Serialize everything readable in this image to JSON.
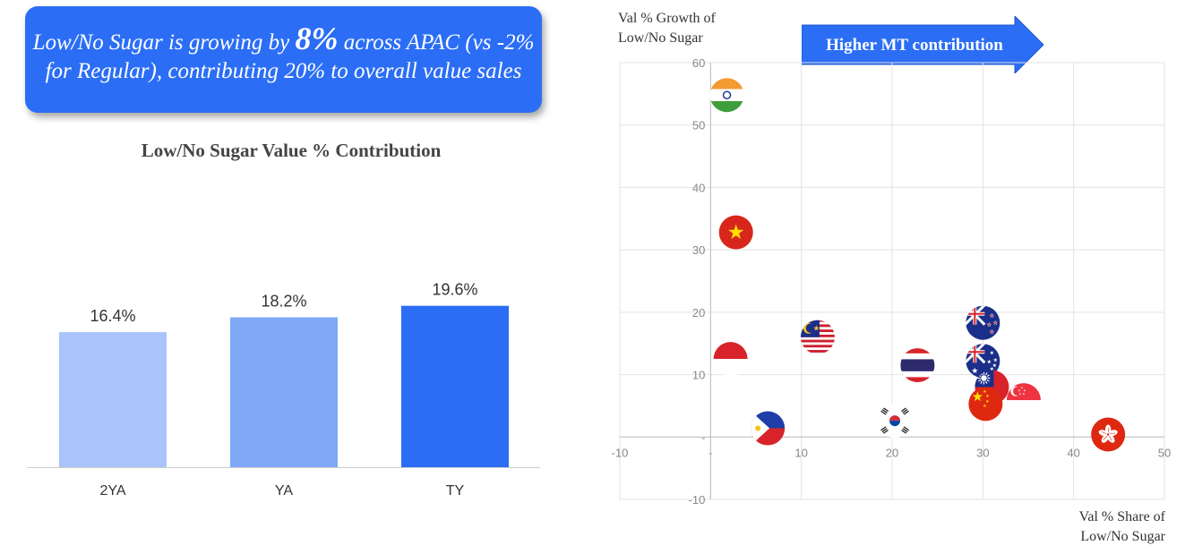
{
  "callout": {
    "pre": "Low/No Sugar is growing by ",
    "highlight": "8%",
    "post": " across APAC (vs -2% for Regular), contributing 20% to overall value sales"
  },
  "bar_title": "Low/No Sugar Value % Contribution",
  "scatter": {
    "ylabel_line1": "Val % Growth of",
    "ylabel_line2": "Low/No Sugar",
    "xlabel_line1": "Val % Share of",
    "xlabel_line2": "Low/No Sugar",
    "arrow_label": "Higher MT contribution"
  },
  "colors": {
    "accent": "#2b6ef5",
    "bar_2ya": "#a9c4fa",
    "bar_ya": "#7fa8f7",
    "bar_ty": "#2b6ef5"
  },
  "chart_data": [
    {
      "type": "bar",
      "title": "Low/No Sugar Value % Contribution",
      "categories": [
        "2YA",
        "YA",
        "TY"
      ],
      "values": [
        16.4,
        18.2,
        19.6
      ],
      "data_labels": [
        "16.4%",
        "18.2%",
        "19.6%"
      ],
      "xlabel": "",
      "ylabel": "",
      "grid": false
    },
    {
      "type": "scatter",
      "xlabel": "Val % Share of Low/No Sugar",
      "ylabel": "Val % Growth of Low/No Sugar",
      "xlim": [
        -10,
        50
      ],
      "ylim": [
        -10,
        60
      ],
      "x_ticks": [
        -10,
        0,
        10,
        20,
        30,
        40,
        50
      ],
      "x_tick_labels": [
        "-10",
        "-",
        "10",
        "20",
        "30",
        "40",
        "50"
      ],
      "y_ticks": [
        -10,
        0,
        10,
        20,
        30,
        40,
        50,
        60
      ],
      "y_tick_labels": [
        "-10",
        "-",
        "10",
        "20",
        "30",
        "40",
        "50",
        "60"
      ],
      "grid": true,
      "points": [
        {
          "marker": "india-flag-icon",
          "x": 1.8,
          "y": 54.8
        },
        {
          "marker": "vietnam-flag-icon",
          "x": 2.8,
          "y": 32.8
        },
        {
          "marker": "indonesia-flag-icon",
          "x": 2.2,
          "y": 12.5
        },
        {
          "marker": "philippines-flag-icon",
          "x": 6.3,
          "y": 1.4
        },
        {
          "marker": "malaysia-flag-icon",
          "x": 11.8,
          "y": 16.0
        },
        {
          "marker": "south-korea-flag-icon",
          "x": 20.3,
          "y": 2.6
        },
        {
          "marker": "thailand-flag-icon",
          "x": 22.8,
          "y": 11.5
        },
        {
          "marker": "new-zealand-flag-icon",
          "x": 30.0,
          "y": 18.3
        },
        {
          "marker": "australia-flag-icon",
          "x": 30.0,
          "y": 12.2
        },
        {
          "marker": "taiwan-flag-icon",
          "x": 31.0,
          "y": 8.0
        },
        {
          "marker": "china-flag-icon",
          "x": 30.3,
          "y": 5.3
        },
        {
          "marker": "singapore-flag-icon",
          "x": 34.5,
          "y": 5.9
        },
        {
          "marker": "hong-kong-flag-icon",
          "x": 43.8,
          "y": 0.4
        }
      ]
    }
  ]
}
